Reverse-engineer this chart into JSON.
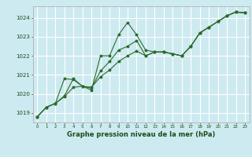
{
  "title": "Graphe pression niveau de la mer (hPa)",
  "bg_color": "#cdeaf0",
  "grid_color": "#ffffff",
  "line_color": "#2d6a2d",
  "xlabel_color": "#1a4d1a",
  "ylim": [
    1018.5,
    1024.6
  ],
  "xlim": [
    -0.5,
    23.5
  ],
  "yticks": [
    1019,
    1020,
    1021,
    1022,
    1023,
    1024
  ],
  "xticks": [
    0,
    1,
    2,
    3,
    4,
    5,
    6,
    7,
    8,
    9,
    10,
    11,
    12,
    13,
    14,
    15,
    16,
    17,
    18,
    19,
    20,
    21,
    22,
    23
  ],
  "series1": {
    "x": [
      0,
      1,
      2,
      3,
      4,
      5,
      6,
      7,
      8,
      9,
      10,
      11,
      12,
      13,
      14,
      15,
      16,
      17,
      18,
      19,
      20,
      21,
      22,
      23
    ],
    "y": [
      1018.8,
      1019.3,
      1019.5,
      1019.9,
      1020.8,
      1020.4,
      1020.2,
      1022.0,
      1022.0,
      1023.1,
      1023.75,
      1023.1,
      1022.3,
      1022.2,
      1022.2,
      1022.1,
      1022.0,
      1022.5,
      1023.2,
      1023.5,
      1023.8,
      1024.1,
      1024.3,
      1024.25
    ]
  },
  "series2": {
    "x": [
      0,
      1,
      2,
      3,
      4,
      5,
      6,
      7,
      8,
      9,
      10,
      11,
      12,
      13,
      14,
      15,
      16,
      17,
      18,
      19,
      20,
      21,
      22,
      23
    ],
    "y": [
      1018.8,
      1019.3,
      1019.5,
      1020.8,
      1020.75,
      1020.4,
      1020.3,
      1021.2,
      1021.7,
      1022.3,
      1022.5,
      1022.8,
      1022.0,
      1022.2,
      1022.2,
      1022.1,
      1022.0,
      1022.5,
      1023.2,
      1023.5,
      1023.8,
      1024.1,
      1024.3,
      1024.25
    ]
  },
  "series3": {
    "x": [
      0,
      1,
      2,
      3,
      4,
      5,
      6,
      7,
      8,
      9,
      10,
      11,
      12,
      13,
      14,
      15,
      16,
      17,
      18,
      19,
      20,
      21,
      22,
      23
    ],
    "y": [
      1018.8,
      1019.3,
      1019.5,
      1019.85,
      1020.35,
      1020.4,
      1020.35,
      1020.9,
      1021.25,
      1021.7,
      1022.0,
      1022.25,
      1022.0,
      1022.2,
      1022.2,
      1022.1,
      1022.0,
      1022.5,
      1023.2,
      1023.5,
      1023.8,
      1024.1,
      1024.3,
      1024.25
    ]
  }
}
